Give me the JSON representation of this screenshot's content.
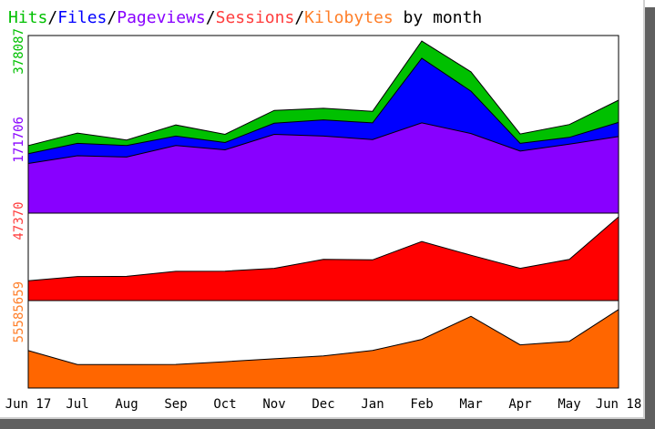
{
  "title": {
    "hits": "Hits",
    "files": "Files",
    "pageviews": "Pageviews",
    "sessions": "Sessions",
    "kilobytes": "Kilobytes",
    "separator": "/",
    "suffix": " by month"
  },
  "colors": {
    "hits": "#00c000",
    "files": "#0000ff",
    "pageviews": "#8800ff",
    "sessions": "#ff0000",
    "kilobytes": "#ff6600",
    "sessions_label": "#ff3c3c",
    "kilobytes_label": "#ff7e28"
  },
  "chart_data": [
    {
      "type": "area",
      "title": "",
      "categories": [
        "Jun 17",
        "Jul",
        "Aug",
        "Sep",
        "Oct",
        "Nov",
        "Dec",
        "Jan",
        "Feb",
        "Mar",
        "Apr",
        "May",
        "Jun 18"
      ],
      "ylim": [
        0,
        415000
      ],
      "ytick_labels": [
        "378087",
        "171706"
      ],
      "ytick_values": [
        378087,
        171706
      ],
      "series": [
        {
          "name": "Hits",
          "values": [
            158000,
            187000,
            171000,
            206000,
            184000,
            240000,
            245000,
            238000,
            402000,
            330000,
            185000,
            207000,
            264000
          ]
        },
        {
          "name": "Files",
          "values": [
            139000,
            163000,
            158000,
            180000,
            165000,
            210000,
            218000,
            211000,
            362000,
            285000,
            163000,
            177000,
            212000
          ]
        },
        {
          "name": "Pageviews",
          "values": [
            116000,
            134000,
            131000,
            158000,
            148000,
            184000,
            180000,
            172000,
            211000,
            186000,
            145000,
            161000,
            179000
          ]
        }
      ]
    },
    {
      "type": "area",
      "title": "",
      "categories": [
        "Jun 17",
        "Jul",
        "Aug",
        "Sep",
        "Oct",
        "Nov",
        "Dec",
        "Jan",
        "Feb",
        "Mar",
        "Apr",
        "May",
        "Jun 18"
      ],
      "ylim": [
        0,
        52000
      ],
      "ytick_labels": [
        "47370"
      ],
      "ytick_values": [
        47370
      ],
      "series": [
        {
          "name": "Sessions",
          "values": [
            11800,
            14300,
            14400,
            17400,
            17500,
            19200,
            24500,
            24200,
            35100,
            27000,
            19200,
            24500,
            49800
          ]
        }
      ]
    },
    {
      "type": "area",
      "title": "",
      "categories": [
        "Jun 17",
        "Jul",
        "Aug",
        "Sep",
        "Oct",
        "Nov",
        "Dec",
        "Jan",
        "Feb",
        "Mar",
        "Apr",
        "May",
        "Jun 18"
      ],
      "ylim": [
        0,
        64000000
      ],
      "ytick_labels": [
        "55585659"
      ],
      "ytick_values": [
        55585659
      ],
      "series": [
        {
          "name": "Kilobytes",
          "values": [
            27400000,
            17200000,
            17200000,
            17300000,
            19300000,
            21400000,
            23500000,
            27500000,
            35600000,
            52500000,
            31600000,
            34200000,
            57500000
          ]
        }
      ]
    }
  ],
  "x_tick_labels": [
    "Jun 17",
    "Jul",
    "Aug",
    "Sep",
    "Oct",
    "Nov",
    "Dec",
    "Jan",
    "Feb",
    "Mar",
    "Apr",
    "May",
    "Jun 18"
  ]
}
